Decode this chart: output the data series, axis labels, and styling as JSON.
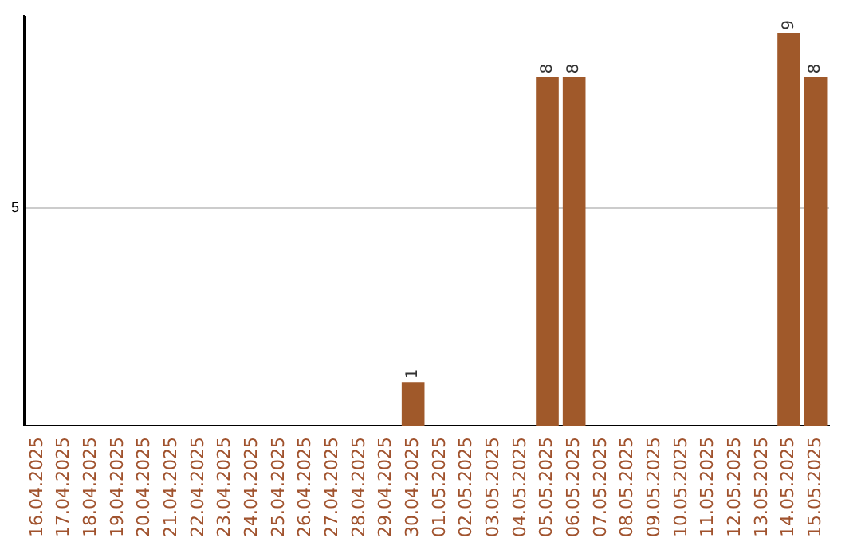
{
  "chart_data": {
    "type": "bar",
    "categories": [
      "16.04.2025",
      "17.04.2025",
      "18.04.2025",
      "19.04.2025",
      "20.04.2025",
      "21.04.2025",
      "22.04.2025",
      "23.04.2025",
      "24.04.2025",
      "25.04.2025",
      "26.04.2025",
      "27.04.2025",
      "28.04.2025",
      "29.04.2025",
      "30.04.2025",
      "01.05.2025",
      "02.05.2025",
      "03.05.2025",
      "04.05.2025",
      "05.05.2025",
      "06.05.2025",
      "07.05.2025",
      "08.05.2025",
      "09.05.2025",
      "10.05.2025",
      "11.05.2025",
      "12.05.2025",
      "13.05.2025",
      "14.05.2025",
      "15.05.2025"
    ],
    "values": [
      null,
      null,
      null,
      null,
      null,
      null,
      null,
      null,
      null,
      null,
      null,
      null,
      null,
      null,
      1,
      null,
      null,
      null,
      null,
      8,
      8,
      null,
      null,
      null,
      null,
      null,
      null,
      null,
      9,
      8
    ],
    "data_labels": true,
    "color": "#a0592a",
    "ylim": [
      0,
      9.4
    ],
    "yticks": [
      5
    ],
    "grid": "y",
    "legend": false
  }
}
